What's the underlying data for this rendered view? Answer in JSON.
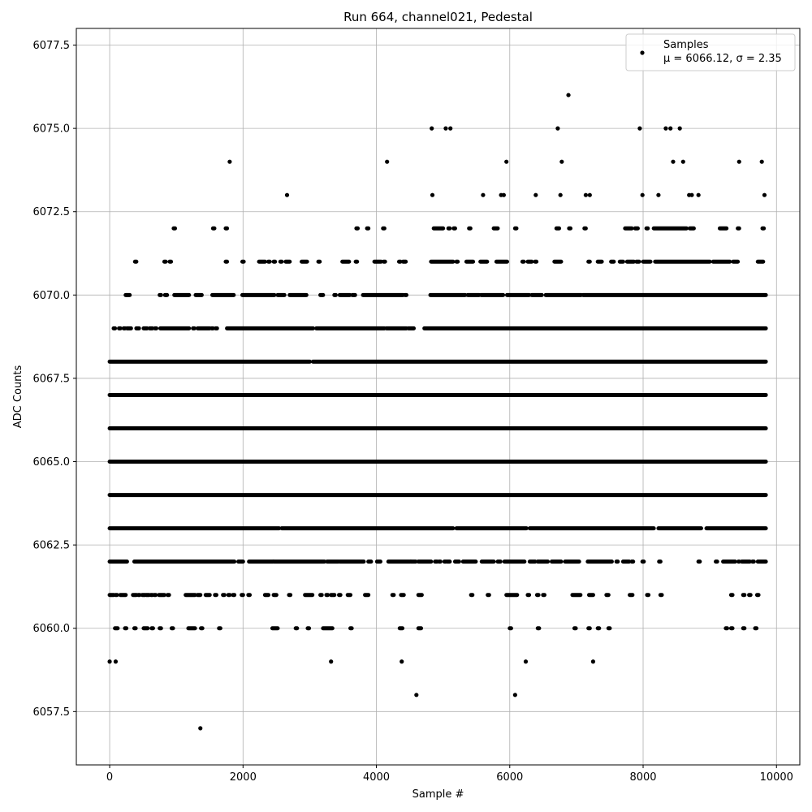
{
  "chart_data": {
    "type": "scatter",
    "title": "Run 664, channel021, Pedestal",
    "xlabel": "Sample #",
    "ylabel": "ADC Counts",
    "xlim": [
      -500,
      10350
    ],
    "ylim": [
      6055.9,
      6078.0
    ],
    "xticks": [
      0,
      2000,
      4000,
      6000,
      8000,
      10000
    ],
    "xtick_labels": [
      "0",
      "2000",
      "4000",
      "6000",
      "8000",
      "10000"
    ],
    "yticks": [
      6057.5,
      6060.0,
      6062.5,
      6065.0,
      6067.5,
      6070.0,
      6072.5,
      6075.0,
      6077.5
    ],
    "ytick_labels": [
      "6057.5",
      "6060.0",
      "6062.5",
      "6065.0",
      "6067.5",
      "6070.0",
      "6072.5",
      "6075.0",
      "6077.5"
    ],
    "grid": true,
    "legend_position": "top-right",
    "marker_color": "#000000",
    "series": [
      {
        "name": "Samples",
        "stats_label": "μ = 6066.12, σ = 2.35",
        "points": [
          [
            1800,
            6074
          ],
          [
            4160,
            6074
          ],
          [
            5950,
            6074
          ],
          [
            6780,
            6074
          ],
          [
            8450,
            6074
          ],
          [
            8600,
            6074
          ],
          [
            9440,
            6074
          ],
          [
            9780,
            6074
          ],
          [
            4830,
            6075
          ],
          [
            5040,
            6075
          ],
          [
            5110,
            6075
          ],
          [
            6720,
            6075
          ],
          [
            7950,
            6075
          ],
          [
            8340,
            6075
          ],
          [
            8410,
            6075
          ],
          [
            8550,
            6075
          ],
          [
            6880,
            6076
          ],
          [
            1360,
            6057
          ],
          [
            4600,
            6058
          ],
          [
            6080,
            6058
          ],
          [
            0,
            6059
          ],
          [
            90,
            6059
          ],
          [
            3320,
            6059
          ],
          [
            4380,
            6059
          ],
          [
            6240,
            6059
          ],
          [
            7250,
            6059
          ],
          [
            2660,
            6073
          ],
          [
            4840,
            6073
          ],
          [
            5600,
            6073
          ],
          [
            5870,
            6073
          ],
          [
            5910,
            6073
          ],
          [
            6390,
            6073
          ],
          [
            6760,
            6073
          ],
          [
            7140,
            6073
          ],
          [
            7200,
            6073
          ],
          [
            7990,
            6073
          ],
          [
            8230,
            6073
          ],
          [
            8690,
            6073
          ],
          [
            8730,
            6073
          ],
          [
            8830,
            6073
          ],
          [
            9820,
            6073
          ]
        ]
      }
    ],
    "level_bands": [
      {
        "y": 6072,
        "segments": [
          [
            960,
            980
          ],
          [
            1550,
            1570
          ],
          [
            1740,
            1760
          ],
          [
            3700,
            3720
          ],
          [
            3860,
            3880
          ],
          [
            4100,
            4120
          ],
          [
            4860,
            5000
          ],
          [
            5080,
            5100
          ],
          [
            5160,
            5180
          ],
          [
            5390,
            5410
          ],
          [
            5760,
            5820
          ],
          [
            6080,
            6100
          ],
          [
            6700,
            6740
          ],
          [
            6890,
            6910
          ],
          [
            7120,
            7140
          ],
          [
            7730,
            7830
          ],
          [
            7880,
            7920
          ],
          [
            8050,
            8070
          ],
          [
            8160,
            8650
          ],
          [
            8700,
            8760
          ],
          [
            9150,
            9250
          ],
          [
            9420,
            9440
          ],
          [
            9790,
            9810
          ]
        ]
      },
      {
        "y": 6071,
        "segments": [
          [
            380,
            400
          ],
          [
            820,
            840
          ],
          [
            900,
            920
          ],
          [
            1740,
            1760
          ],
          [
            1990,
            2010
          ],
          [
            2240,
            2330
          ],
          [
            2380,
            2400
          ],
          [
            2460,
            2480
          ],
          [
            2560,
            2580
          ],
          [
            2640,
            2700
          ],
          [
            2880,
            2960
          ],
          [
            3130,
            3150
          ],
          [
            3490,
            3590
          ],
          [
            3690,
            3710
          ],
          [
            3970,
            4070
          ],
          [
            4110,
            4130
          ],
          [
            4340,
            4360
          ],
          [
            4400,
            4440
          ],
          [
            4820,
            5150
          ],
          [
            5200,
            5220
          ],
          [
            5350,
            5450
          ],
          [
            5560,
            5660
          ],
          [
            5800,
            5960
          ],
          [
            6190,
            6210
          ],
          [
            6270,
            6330
          ],
          [
            6380,
            6400
          ],
          [
            6670,
            6770
          ],
          [
            7180,
            7200
          ],
          [
            7320,
            7380
          ],
          [
            7520,
            7560
          ],
          [
            7650,
            7700
          ],
          [
            7760,
            7860
          ],
          [
            7900,
            7940
          ],
          [
            8000,
            8110
          ],
          [
            8180,
            9000
          ],
          [
            9050,
            9300
          ],
          [
            9350,
            9420
          ],
          [
            9720,
            9800
          ]
        ]
      },
      {
        "y": 6070,
        "segments": [
          [
            240,
            300
          ],
          [
            750,
            770
          ],
          [
            830,
            860
          ],
          [
            970,
            1190
          ],
          [
            1290,
            1380
          ],
          [
            1540,
            1860
          ],
          [
            1990,
            2470
          ],
          [
            2520,
            2620
          ],
          [
            2700,
            2950
          ],
          [
            3160,
            3200
          ],
          [
            3370,
            3390
          ],
          [
            3450,
            3600
          ],
          [
            3640,
            3680
          ],
          [
            3800,
            4400
          ],
          [
            4430,
            4450
          ],
          [
            4810,
            5330
          ],
          [
            5370,
            5540
          ],
          [
            5570,
            5900
          ],
          [
            5960,
            6290
          ],
          [
            6330,
            6480
          ],
          [
            6540,
            7070
          ],
          [
            7100,
            9840
          ]
        ]
      },
      {
        "y": 6069,
        "segments": [
          [
            60,
            80
          ],
          [
            140,
            160
          ],
          [
            210,
            230
          ],
          [
            260,
            320
          ],
          [
            400,
            440
          ],
          [
            510,
            560
          ],
          [
            600,
            640
          ],
          [
            680,
            700
          ],
          [
            760,
            1190
          ],
          [
            1250,
            1270
          ],
          [
            1320,
            1500
          ],
          [
            1530,
            1550
          ],
          [
            1590,
            1610
          ],
          [
            1760,
            3050
          ],
          [
            3100,
            4120
          ],
          [
            4150,
            4450
          ],
          [
            4480,
            4560
          ],
          [
            4720,
            9840
          ]
        ]
      },
      {
        "y": 6068,
        "segments": [
          [
            0,
            3000
          ],
          [
            3050,
            9840
          ]
        ]
      },
      {
        "y": 6067,
        "segments": [
          [
            0,
            9840
          ]
        ]
      },
      {
        "y": 6066,
        "segments": [
          [
            0,
            9840
          ]
        ]
      },
      {
        "y": 6065,
        "segments": [
          [
            0,
            9840
          ]
        ]
      },
      {
        "y": 6064,
        "segments": [
          [
            0,
            9840
          ]
        ]
      },
      {
        "y": 6063,
        "segments": [
          [
            0,
            2540
          ],
          [
            2580,
            5150
          ],
          [
            5200,
            6250
          ],
          [
            6300,
            8160
          ],
          [
            8230,
            8870
          ],
          [
            8950,
            9840
          ]
        ]
      },
      {
        "y": 6062,
        "segments": [
          [
            0,
            260
          ],
          [
            370,
            1870
          ],
          [
            1930,
            2000
          ],
          [
            2090,
            2450
          ],
          [
            2460,
            3220
          ],
          [
            3260,
            3430
          ],
          [
            3450,
            3810
          ],
          [
            3880,
            3920
          ],
          [
            4010,
            4060
          ],
          [
            4180,
            4510
          ],
          [
            4520,
            4590
          ],
          [
            4630,
            4820
          ],
          [
            4880,
            4910
          ],
          [
            4940,
            4960
          ],
          [
            5020,
            5040
          ],
          [
            5060,
            5100
          ],
          [
            5180,
            5240
          ],
          [
            5300,
            5490
          ],
          [
            5580,
            5760
          ],
          [
            5820,
            5860
          ],
          [
            5920,
            6220
          ],
          [
            6300,
            6380
          ],
          [
            6420,
            6570
          ],
          [
            6630,
            6770
          ],
          [
            6830,
            7040
          ],
          [
            7170,
            7530
          ],
          [
            7600,
            7620
          ],
          [
            7700,
            7790
          ],
          [
            7830,
            7850
          ],
          [
            7990,
            8010
          ],
          [
            8240,
            8260
          ],
          [
            8830,
            8850
          ],
          [
            9090,
            9110
          ],
          [
            9200,
            9380
          ],
          [
            9430,
            9440
          ],
          [
            9480,
            9600
          ],
          [
            9640,
            9660
          ],
          [
            9720,
            9840
          ]
        ]
      },
      {
        "y": 6061,
        "segments": [
          [
            0,
            60
          ],
          [
            90,
            110
          ],
          [
            160,
            240
          ],
          [
            350,
            400
          ],
          [
            430,
            450
          ],
          [
            490,
            530
          ],
          [
            550,
            590
          ],
          [
            620,
            640
          ],
          [
            670,
            690
          ],
          [
            740,
            820
          ],
          [
            870,
            890
          ],
          [
            1140,
            1280
          ],
          [
            1320,
            1360
          ],
          [
            1440,
            1500
          ],
          [
            1580,
            1600
          ],
          [
            1700,
            1720
          ],
          [
            1780,
            1800
          ],
          [
            1850,
            1870
          ],
          [
            1980,
            2000
          ],
          [
            2080,
            2100
          ],
          [
            2330,
            2380
          ],
          [
            2460,
            2500
          ],
          [
            2690,
            2710
          ],
          [
            2930,
            3040
          ],
          [
            3160,
            3180
          ],
          [
            3250,
            3270
          ],
          [
            3320,
            3370
          ],
          [
            3440,
            3460
          ],
          [
            3570,
            3610
          ],
          [
            3830,
            3880
          ],
          [
            4240,
            4260
          ],
          [
            4370,
            4410
          ],
          [
            4630,
            4680
          ],
          [
            5420,
            5440
          ],
          [
            5670,
            5690
          ],
          [
            5950,
            6110
          ],
          [
            6270,
            6290
          ],
          [
            6410,
            6430
          ],
          [
            6500,
            6520
          ],
          [
            6940,
            7060
          ],
          [
            7190,
            7250
          ],
          [
            7450,
            7480
          ],
          [
            7800,
            7840
          ],
          [
            8060,
            8080
          ],
          [
            8260,
            8280
          ],
          [
            9320,
            9340
          ],
          [
            9500,
            9520
          ],
          [
            9590,
            9610
          ],
          [
            9710,
            9730
          ]
        ]
      },
      {
        "y": 6060,
        "segments": [
          [
            80,
            120
          ],
          [
            230,
            250
          ],
          [
            370,
            390
          ],
          [
            510,
            570
          ],
          [
            630,
            650
          ],
          [
            750,
            770
          ],
          [
            930,
            950
          ],
          [
            1180,
            1280
          ],
          [
            1370,
            1390
          ],
          [
            1640,
            1660
          ],
          [
            2440,
            2520
          ],
          [
            2790,
            2810
          ],
          [
            2970,
            2990
          ],
          [
            3200,
            3340
          ],
          [
            3610,
            3630
          ],
          [
            4350,
            4390
          ],
          [
            4630,
            4670
          ],
          [
            6000,
            6020
          ],
          [
            6420,
            6440
          ],
          [
            6970,
            6990
          ],
          [
            7180,
            7200
          ],
          [
            7320,
            7340
          ],
          [
            7480,
            7500
          ],
          [
            9240,
            9260
          ],
          [
            9320,
            9340
          ],
          [
            9500,
            9520
          ],
          [
            9680,
            9700
          ]
        ]
      }
    ]
  }
}
